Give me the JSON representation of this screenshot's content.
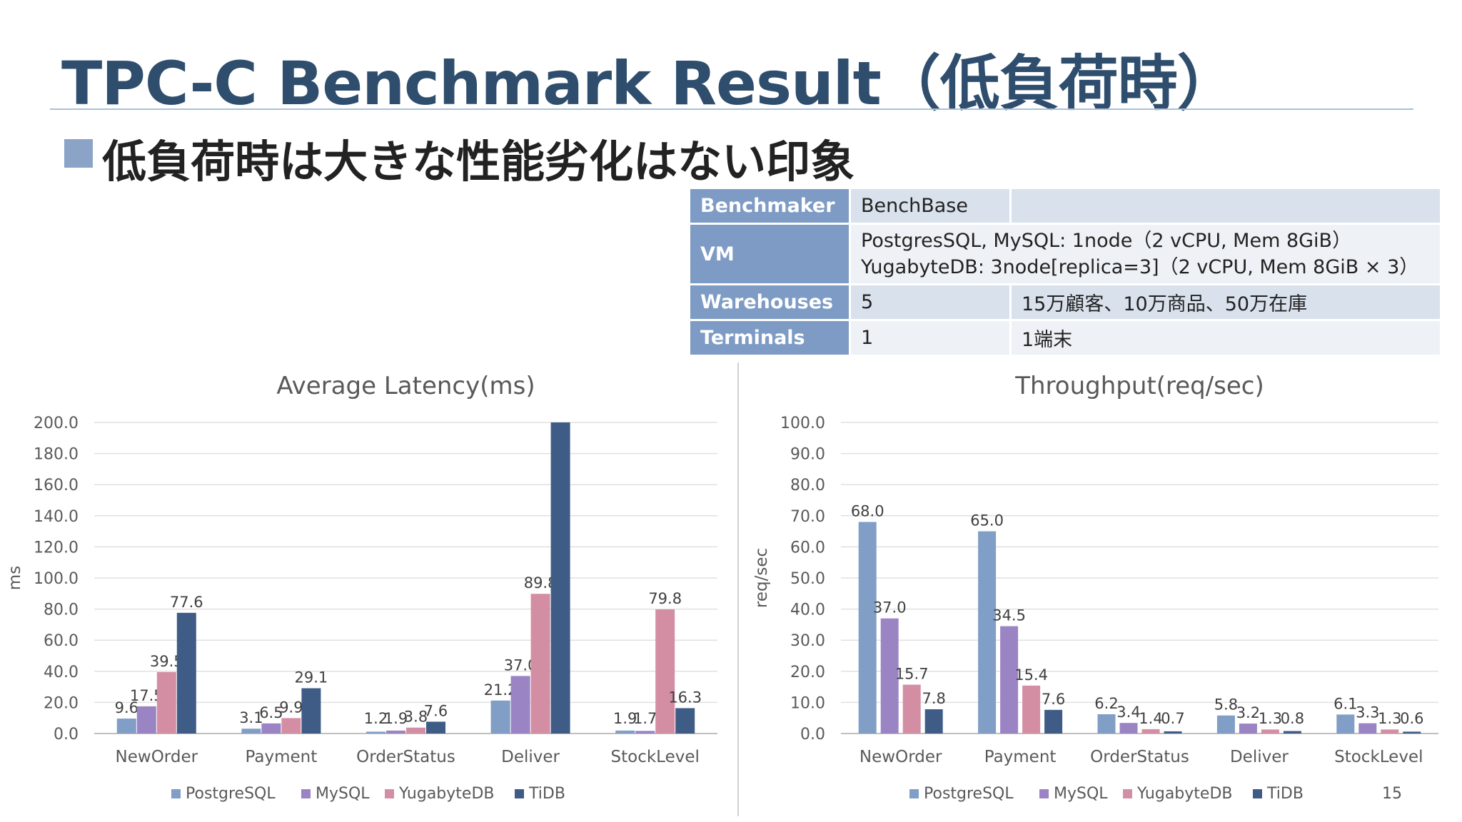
{
  "slide": {
    "title": "TPC-C Benchmark Result（低負荷時）",
    "subtitle": "低負荷時は大きな性能劣化はない印象",
    "page_number": "15"
  },
  "spec_table": [
    {
      "label": "Benchmaker",
      "value": "BenchBase",
      "extra": ""
    },
    {
      "label": "VM",
      "value": "PostgresSQL, MySQL: 1node（2 vCPU, Mem 8GiB）",
      "value2": "YugabyteDB: 3node[replica=3]（2 vCPU, Mem 8GiB × 3）"
    },
    {
      "label": "Warehouses",
      "value": "5",
      "extra": "15万顧客、10万商品、50万在庫"
    },
    {
      "label": "Terminals",
      "value": "1",
      "extra": "1端末"
    }
  ],
  "colors": {
    "PostgreSQL": "#809ec6",
    "MySQL": "#9b84c4",
    "YugabyteDB": "#d48ea3",
    "TiDB": "#3f5c86"
  },
  "chart_data": [
    {
      "type": "bar",
      "title": "Average Latency(ms)",
      "xlabel": "",
      "ylabel": "ms",
      "ylim": [
        0,
        200
      ],
      "ytick_step": 20,
      "ytick_decimals": 1,
      "grid": true,
      "legend_position": "bottom",
      "categories": [
        "NewOrder",
        "Payment",
        "OrderStatus",
        "Deliver",
        "StockLevel"
      ],
      "series": [
        {
          "name": "PostgreSQL",
          "values": [
            9.6,
            3.1,
            1.2,
            21.2,
            1.9
          ],
          "labels": [
            "9.6",
            "3.1",
            "1.2",
            "21.2",
            "1.9"
          ]
        },
        {
          "name": "MySQL",
          "values": [
            17.5,
            6.5,
            1.9,
            37.0,
            1.7
          ],
          "labels": [
            "17.5",
            "6.5",
            "1.9",
            "37.0",
            "1.7"
          ]
        },
        {
          "name": "YugabyteDB",
          "values": [
            39.5,
            9.9,
            3.8,
            89.8,
            79.8
          ],
          "labels": [
            "39.5",
            "9.9",
            "3.8",
            "89.8",
            "79.8"
          ]
        },
        {
          "name": "TiDB",
          "values": [
            77.6,
            29.1,
            7.6,
            200.0,
            16.3
          ],
          "labels": [
            "77.6",
            "29.1",
            "7.6",
            "",
            "16.3"
          ]
        }
      ]
    },
    {
      "type": "bar",
      "title": "Throughput(req/sec)",
      "xlabel": "",
      "ylabel": "req/sec",
      "ylim": [
        0,
        100
      ],
      "ytick_step": 10,
      "ytick_decimals": 1,
      "grid": true,
      "legend_position": "bottom",
      "categories": [
        "NewOrder",
        "Payment",
        "OrderStatus",
        "Deliver",
        "StockLevel"
      ],
      "series": [
        {
          "name": "PostgreSQL",
          "values": [
            68.0,
            65.0,
            6.2,
            5.8,
            6.1
          ],
          "labels": [
            "68.0",
            "65.0",
            "6.2",
            "5.8",
            "6.1"
          ]
        },
        {
          "name": "MySQL",
          "values": [
            37.0,
            34.5,
            3.4,
            3.2,
            3.3
          ],
          "labels": [
            "37.0",
            "34.5",
            "3.4",
            "3.2",
            "3.3"
          ]
        },
        {
          "name": "YugabyteDB",
          "values": [
            15.7,
            15.4,
            1.4,
            1.3,
            1.3
          ],
          "labels": [
            "15.7",
            "15.4",
            "1.4",
            "1.3",
            "1.3"
          ]
        },
        {
          "name": "TiDB",
          "values": [
            7.8,
            7.6,
            0.7,
            0.8,
            0.6
          ],
          "labels": [
            "7.8",
            "7.6",
            "0.7",
            "0.8",
            "0.6"
          ]
        }
      ]
    }
  ]
}
